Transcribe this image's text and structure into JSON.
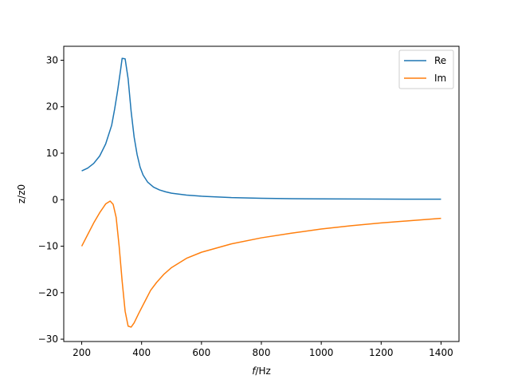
{
  "chart_data": {
    "type": "line",
    "xlabel_italic": "f",
    "xlabel_rest": "/Hz",
    "ylabel": "z/z0",
    "xlim": [
      140,
      1460
    ],
    "ylim": [
      -30.5,
      33
    ],
    "xticks": [
      200,
      400,
      600,
      800,
      1000,
      1200,
      1400
    ],
    "yticks": [
      -30,
      -20,
      -10,
      0,
      10,
      20,
      30
    ],
    "legend_position": "upper right",
    "series": [
      {
        "name": "Re",
        "color": "#1f77b4",
        "points": [
          [
            200,
            6.2
          ],
          [
            220,
            6.8
          ],
          [
            240,
            7.8
          ],
          [
            260,
            9.4
          ],
          [
            280,
            12.0
          ],
          [
            300,
            16.0
          ],
          [
            310,
            19.5
          ],
          [
            320,
            23.5
          ],
          [
            330,
            28.0
          ],
          [
            335,
            30.4
          ],
          [
            345,
            30.3
          ],
          [
            355,
            26.0
          ],
          [
            365,
            19.0
          ],
          [
            375,
            13.5
          ],
          [
            385,
            9.7
          ],
          [
            395,
            7.0
          ],
          [
            405,
            5.3
          ],
          [
            420,
            3.8
          ],
          [
            440,
            2.7
          ],
          [
            460,
            2.1
          ],
          [
            480,
            1.7
          ],
          [
            500,
            1.4
          ],
          [
            550,
            1.0
          ],
          [
            600,
            0.75
          ],
          [
            700,
            0.45
          ],
          [
            800,
            0.3
          ],
          [
            900,
            0.22
          ],
          [
            1000,
            0.18
          ],
          [
            1100,
            0.15
          ],
          [
            1200,
            0.13
          ],
          [
            1300,
            0.12
          ],
          [
            1400,
            0.11
          ]
        ]
      },
      {
        "name": "Im",
        "color": "#ff7f0e",
        "points": [
          [
            200,
            -10.0
          ],
          [
            220,
            -7.5
          ],
          [
            240,
            -5.0
          ],
          [
            260,
            -2.8
          ],
          [
            280,
            -0.9
          ],
          [
            295,
            -0.3
          ],
          [
            305,
            -1.0
          ],
          [
            315,
            -3.8
          ],
          [
            325,
            -10.0
          ],
          [
            335,
            -17.5
          ],
          [
            345,
            -24.0
          ],
          [
            355,
            -27.2
          ],
          [
            365,
            -27.4
          ],
          [
            375,
            -26.5
          ],
          [
            390,
            -24.5
          ],
          [
            410,
            -22.0
          ],
          [
            430,
            -19.5
          ],
          [
            450,
            -17.8
          ],
          [
            475,
            -16.0
          ],
          [
            500,
            -14.6
          ],
          [
            550,
            -12.6
          ],
          [
            600,
            -11.3
          ],
          [
            700,
            -9.5
          ],
          [
            800,
            -8.2
          ],
          [
            900,
            -7.2
          ],
          [
            1000,
            -6.3
          ],
          [
            1100,
            -5.6
          ],
          [
            1200,
            -5.0
          ],
          [
            1300,
            -4.5
          ],
          [
            1400,
            -4.0
          ]
        ]
      }
    ]
  }
}
